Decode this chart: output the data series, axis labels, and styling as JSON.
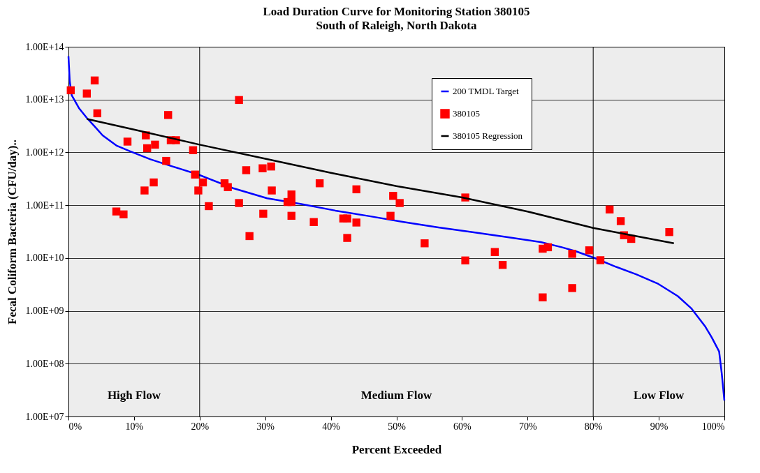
{
  "chart_data": {
    "type": "line",
    "title": "Load Duration Curve for Monitoring Station 380105",
    "subtitle": "South of Raleigh, North Dakota",
    "xlabel": "Percent Exceeded",
    "ylabel": "Fecal Coliform Bacteria (CFU/day)..",
    "xlim": [
      0,
      100
    ],
    "xticks": [
      {
        "value": 0,
        "label": "0%"
      },
      {
        "value": 10,
        "label": "10%"
      },
      {
        "value": 20,
        "label": "20%"
      },
      {
        "value": 30,
        "label": "30%"
      },
      {
        "value": 40,
        "label": "40%"
      },
      {
        "value": 50,
        "label": "50%"
      },
      {
        "value": 60,
        "label": "60%"
      },
      {
        "value": 70,
        "label": "70%"
      },
      {
        "value": 80,
        "label": "80%"
      },
      {
        "value": 90,
        "label": "90%"
      },
      {
        "value": 100,
        "label": "100%"
      }
    ],
    "ylim": [
      10000000.0,
      100000000000000.0
    ],
    "yticks": [
      {
        "value": 10000000.0,
        "label": "1.00E+07"
      },
      {
        "value": 100000000.0,
        "label": "1.00E+08"
      },
      {
        "value": 1000000000.0,
        "label": "1.00E+09"
      },
      {
        "value": 10000000000.0,
        "label": "1.00E+10"
      },
      {
        "value": 100000000000.0,
        "label": "1.00E+11"
      },
      {
        "value": 1000000000000.0,
        "label": "1.00E+12"
      },
      {
        "value": 10000000000000.0,
        "label": "1.00E+13"
      },
      {
        "value": 100000000000000.0,
        "label": "1.00E+14"
      }
    ],
    "log": "y",
    "grid": "y",
    "legend": "top right",
    "ref_lines": [
      {
        "axis": "x",
        "value": 20,
        "color": "#000000"
      },
      {
        "axis": "x",
        "value": 80,
        "color": "#000000"
      }
    ],
    "annotations": [
      "High Flow",
      "Medium Flow",
      "Low Flow"
    ],
    "series": [
      {
        "name": "200 TMDL Target",
        "type": "line",
        "color": "#0000ff",
        "x": [
          0,
          0.2,
          0.5,
          1.6,
          2.8,
          4.2,
          5.2,
          7.3,
          9.4,
          12.5,
          15.7,
          19.8,
          25.1,
          30.3,
          35.5,
          40.7,
          45.9,
          51.1,
          56.4,
          61.6,
          66.8,
          72.0,
          75.2,
          77.3,
          80.4,
          83.5,
          86.6,
          89.8,
          92.9,
          95.0,
          97.1,
          98.1,
          99.2,
          99.6,
          100
        ],
        "values": [
          66000000000000.0,
          22000000000000.0,
          12000000000000.0,
          6900000000000.0,
          4500000000000.0,
          2900000000000.0,
          2100000000000.0,
          1350000000000.0,
          1050000000000.0,
          740000000000.0,
          550000000000.0,
          380000000000.0,
          210000000000.0,
          135000000000.0,
          105000000000.0,
          79000000000.0,
          62000000000.0,
          48000000000.0,
          38000000000.0,
          31000000000.0,
          25000000000.0,
          20000000000.0,
          16000000000.0,
          13500000000.0,
          9800000000.0,
          6800000000.0,
          4900000000.0,
          3300000000.0,
          1900000000.0,
          1100000000.0,
          500000000.0,
          310000000.0,
          170000000.0,
          65000000.0,
          20000000.0
        ]
      },
      {
        "name": "380105",
        "type": "scatter",
        "marker": "square",
        "color": "#ff0000",
        "x": [
          0.35,
          2.8,
          4.0,
          4.4,
          7.3,
          8.4,
          9.0,
          11.6,
          11.8,
          12.0,
          13.2,
          13.0,
          14.9,
          15.2,
          15.6,
          16.4,
          19.0,
          19.3,
          19.8,
          20.5,
          21.4,
          23.8,
          24.3,
          26.0,
          26.0,
          27.1,
          27.6,
          29.6,
          29.7,
          30.9,
          31.0,
          33.4,
          34.0,
          34.0,
          34.0,
          37.4,
          38.3,
          41.9,
          42.5,
          42.5,
          43.9,
          43.9,
          49.1,
          49.5,
          50.5,
          54.3,
          60.5,
          60.5,
          65.0,
          66.2,
          72.3,
          73.1,
          72.3,
          76.8,
          76.8,
          79.4,
          81.1,
          82.5,
          84.2,
          84.7,
          85.8,
          91.6
        ],
        "values": [
          15000000000000.0,
          13000000000000.0,
          23000000000000.0,
          5500000000000.0,
          76000000000.0,
          67000000000.0,
          1600000000000.0,
          190000000000.0,
          2100000000000.0,
          1200000000000.0,
          1400000000000.0,
          270000000000.0,
          690000000000.0,
          5100000000000.0,
          1700000000000.0,
          1700000000000.0,
          1100000000000.0,
          380000000000.0,
          190000000000.0,
          270000000000.0,
          96000000000.0,
          260000000000.0,
          220000000000.0,
          9800000000000.0,
          110000000000.0,
          460000000000.0,
          26000000000.0,
          500000000000.0,
          69000000000.0,
          540000000000.0,
          190000000000.0,
          115000000000.0,
          115000000000.0,
          160000000000.0,
          63000000000.0,
          48000000000.0,
          260000000000.0,
          56000000000.0,
          56000000000.0,
          24000000000.0,
          200000000000.0,
          47000000000.0,
          63000000000.0,
          150000000000.0,
          110000000000.0,
          19000000000.0,
          140000000000.0,
          9000000000.0,
          13000000000.0,
          7400000000.0,
          15000000000.0,
          16000000000.0,
          1800000000.0,
          12000000000.0,
          2700000000.0,
          14000000000.0,
          9100000000.0,
          83000000000.0,
          50000000000.0,
          27000000000.0,
          23000000000.0,
          31000000000.0
        ]
      },
      {
        "name": "380105 Regression",
        "type": "line",
        "color": "#000000",
        "x": [
          2.8,
          10,
          20,
          30,
          40,
          50,
          60,
          70,
          80,
          92.3
        ],
        "values": [
          4300000000000.0,
          2700000000000.0,
          1400000000000.0,
          760000000000.0,
          410000000000.0,
          230000000000.0,
          140000000000.0,
          76000000000.0,
          37000000000.0,
          19000000000.0
        ]
      }
    ]
  }
}
